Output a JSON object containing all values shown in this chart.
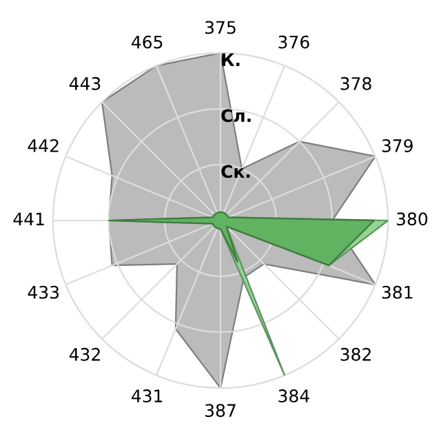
{
  "chart_data": {
    "type": "radar",
    "categories": [
      "375",
      "376",
      "378",
      "379",
      "380",
      "381",
      "382",
      "384",
      "387",
      "431",
      "432",
      "433",
      "441",
      "442",
      "443",
      "465"
    ],
    "ylim": [
      0,
      3
    ],
    "yticks": [
      {
        "value": 1,
        "label": "Ск."
      },
      {
        "value": 2,
        "label": "Сл."
      },
      {
        "value": 3,
        "label": "К."
      }
    ],
    "grid": true,
    "legend": false,
    "marker": "none",
    "series": [
      {
        "color": "#b4b4b4",
        "values": [
          3.0,
          1.0,
          2.0,
          3.0,
          2.0,
          3.0,
          1.1,
          1.1,
          3.0,
          2.1,
          1.1,
          2.1,
          2.0,
          2.1,
          3.0,
          3.0
        ]
      },
      {
        "color": "#88d088",
        "values": [
          0.15,
          0.15,
          0.15,
          0.15,
          3.0,
          2.1,
          0.15,
          3.0,
          0.15,
          0.15,
          0.15,
          0.15,
          2.0,
          0.15,
          0.15,
          0.15
        ]
      },
      {
        "color": "#5caf5c",
        "values": [
          0.15,
          0.15,
          0.15,
          0.15,
          2.75,
          2.1,
          0.15,
          0.8,
          0.15,
          0.15,
          0.15,
          0.15,
          2.0,
          0.15,
          0.15,
          0.15
        ]
      }
    ]
  }
}
